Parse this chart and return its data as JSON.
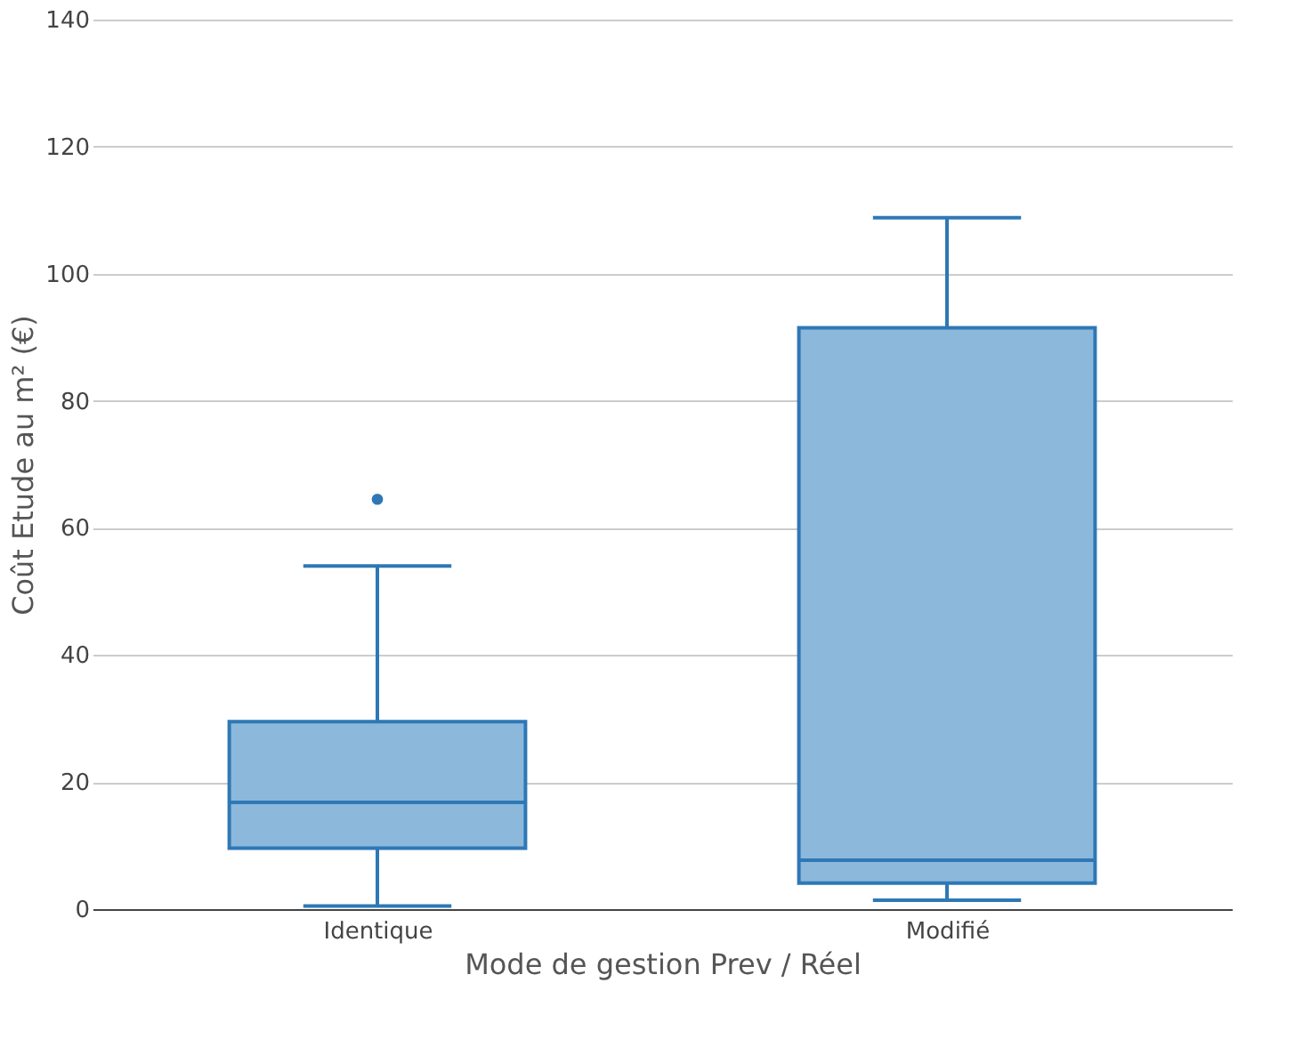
{
  "chart_data": {
    "type": "box",
    "xlabel": "Mode de gestion Prev / Réel",
    "ylabel": "Coût Etude au m² (€)",
    "categories": [
      "Identique",
      "Modifié"
    ],
    "boxes": [
      {
        "low": 0.5,
        "q1": 9.6,
        "median": 16.8,
        "q3": 29.5,
        "high": 54,
        "outliers": [
          64.5
        ]
      },
      {
        "low": 1.4,
        "q1": 4.1,
        "median": 7.7,
        "q3": 91.5,
        "high": 108.8
      }
    ],
    "color": "#2e78b5",
    "ylim": [
      0,
      140
    ],
    "yticks": [
      0,
      20,
      40,
      60,
      80,
      100,
      120,
      140
    ],
    "grid": "y"
  }
}
